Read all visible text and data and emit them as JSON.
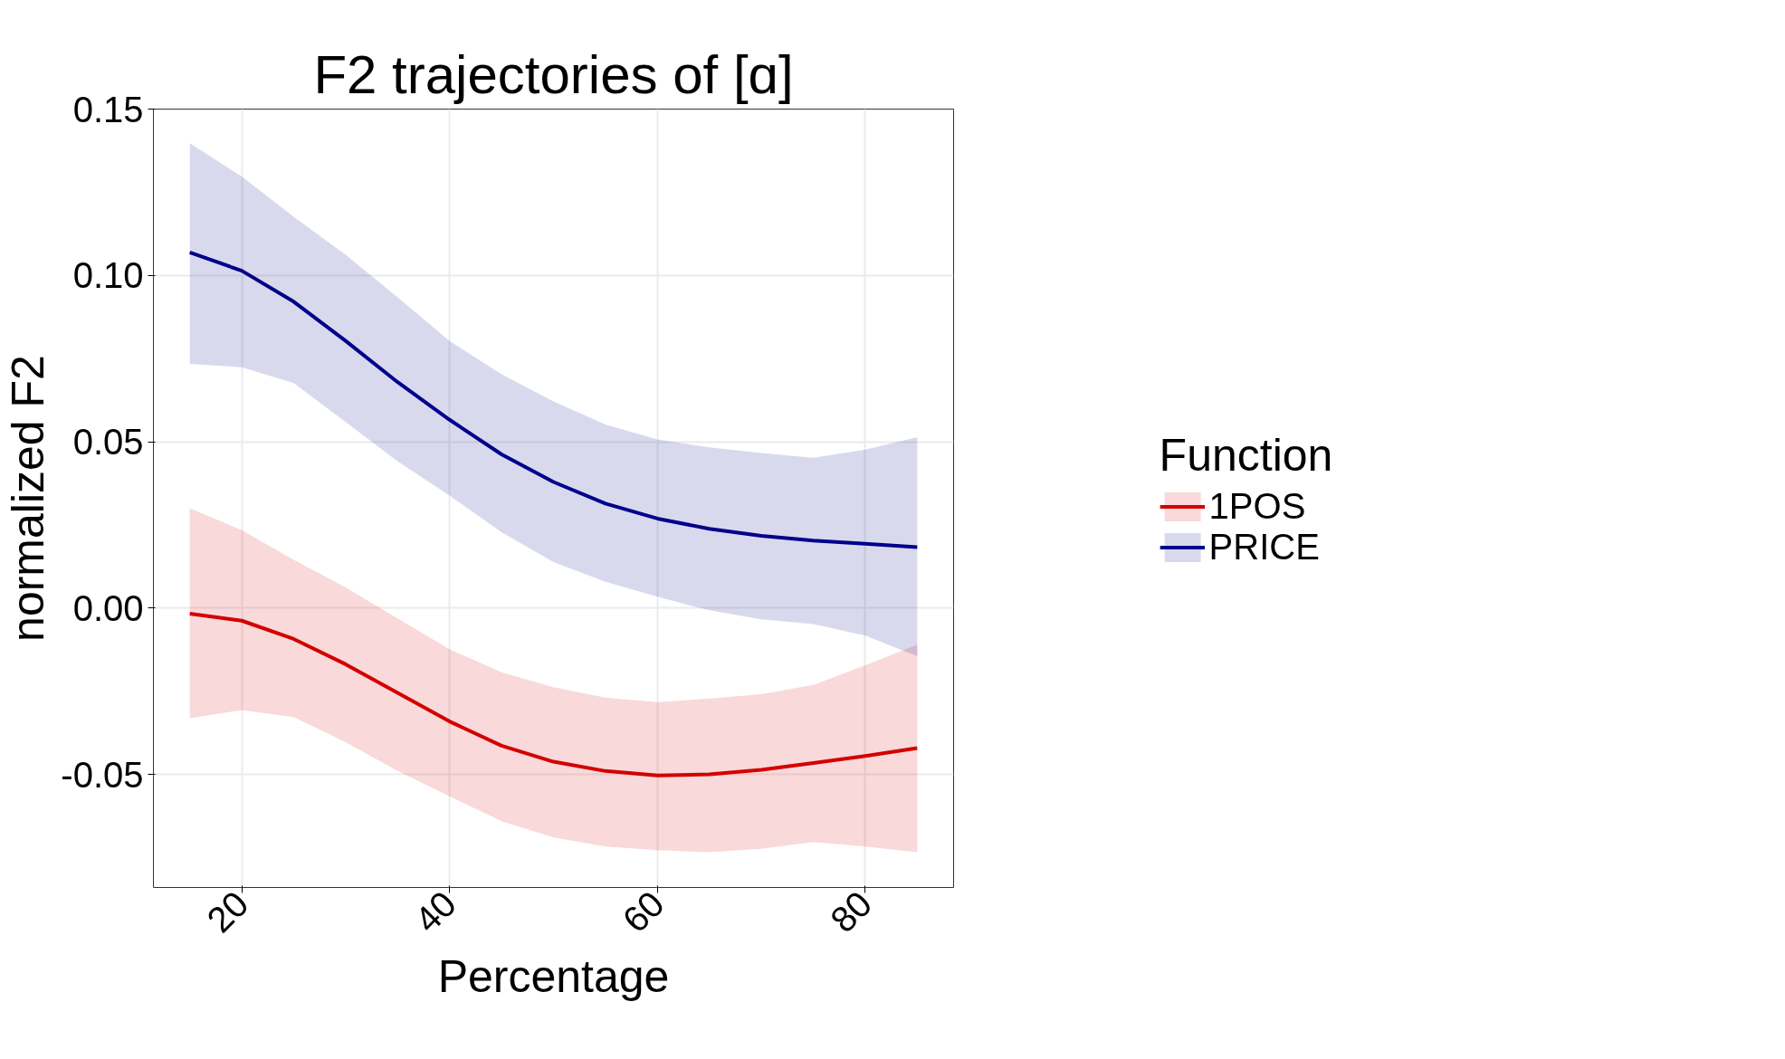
{
  "chart_data": {
    "type": "line",
    "title": "F2 trajectories of [ɑ]",
    "xlabel": "Percentage",
    "ylabel": "normalized F2",
    "legend_title": "Function",
    "legend": "right",
    "grid": true,
    "x": [
      15,
      20,
      25,
      30,
      35,
      40,
      45,
      50,
      55,
      60,
      65,
      70,
      75,
      80,
      85
    ],
    "xlim": [
      11.5,
      88.5
    ],
    "xticks": [
      20,
      40,
      60,
      80
    ],
    "ylim": [
      -0.084,
      0.15
    ],
    "yticks": [
      {
        "value": -0.05,
        "label": "-0.05"
      },
      {
        "value": 0,
        "label": "0.00"
      },
      {
        "value": 0.05,
        "label": "0.05"
      },
      {
        "value": 0.1,
        "label": "0.10"
      },
      {
        "value": 0.15,
        "label": "0.15"
      }
    ],
    "series": [
      {
        "name": "1POS",
        "color": "#d40000",
        "values": [
          -0.0017,
          -0.0038,
          -0.0093,
          -0.0169,
          -0.0255,
          -0.0341,
          -0.0414,
          -0.0462,
          -0.049,
          -0.0503,
          -0.05,
          -0.0486,
          -0.0466,
          -0.0445,
          -0.0421
        ],
        "upper": [
          0.03,
          0.0234,
          0.0145,
          0.0062,
          -0.0031,
          -0.0124,
          -0.0193,
          -0.0238,
          -0.0269,
          -0.0283,
          -0.0272,
          -0.0259,
          -0.0231,
          -0.0172,
          -0.011
        ],
        "lower": [
          -0.0331,
          -0.0307,
          -0.0328,
          -0.0403,
          -0.049,
          -0.0566,
          -0.0641,
          -0.069,
          -0.0717,
          -0.0728,
          -0.0734,
          -0.0724,
          -0.0703,
          -0.0717,
          -0.0734
        ]
      },
      {
        "name": "PRICE",
        "color": "#00008b",
        "values": [
          0.1069,
          0.1014,
          0.0921,
          0.0803,
          0.0679,
          0.0566,
          0.0462,
          0.0379,
          0.0314,
          0.0269,
          0.0238,
          0.0217,
          0.0203,
          0.0193,
          0.0183
        ],
        "upper": [
          0.1397,
          0.1297,
          0.1176,
          0.1062,
          0.0934,
          0.0803,
          0.0703,
          0.0621,
          0.0552,
          0.0507,
          0.0483,
          0.0466,
          0.0452,
          0.0476,
          0.0514
        ],
        "lower": [
          0.0734,
          0.0724,
          0.0676,
          0.0559,
          0.0441,
          0.0338,
          0.0228,
          0.0138,
          0.0079,
          0.0034,
          -0.0007,
          -0.0034,
          -0.0048,
          -0.0083,
          -0.0145
        ]
      }
    ]
  }
}
